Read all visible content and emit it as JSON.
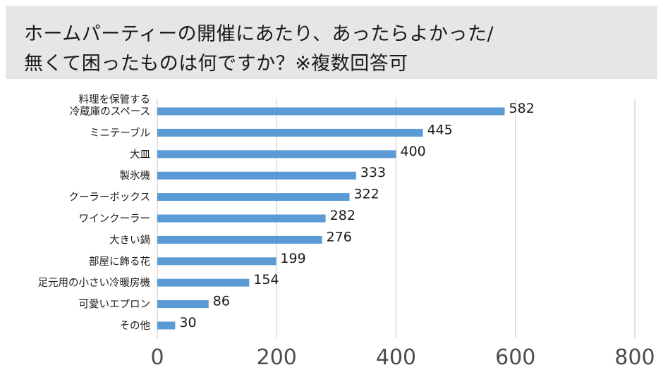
{
  "title": {
    "line1": "ホームパーティーの開催にあたり、あったらよかった/",
    "line2": "無くて困ったものは何ですか？※複数回答可"
  },
  "colors": {
    "bar": "#5b9bd5",
    "grid": "#d9d9d9",
    "title_bg": "#e6e6e6"
  },
  "chart_data": {
    "type": "bar",
    "orientation": "horizontal",
    "categories": [
      [
        "料理を保管する",
        "冷蔵庫のスペース"
      ],
      [
        "ミニテーブル"
      ],
      [
        "大皿"
      ],
      [
        "製氷機"
      ],
      [
        "クーラーボックス"
      ],
      [
        "ワインクーラー"
      ],
      [
        "大きい鍋"
      ],
      [
        "部屋に飾る花"
      ],
      [
        "足元用の小さい冷暖房機"
      ],
      [
        "可愛いエプロン"
      ],
      [
        "その他"
      ]
    ],
    "values": [
      582,
      445,
      400,
      333,
      322,
      282,
      276,
      199,
      154,
      86,
      30
    ],
    "xlim": [
      0,
      800
    ],
    "xticks": [
      0,
      200,
      400,
      600,
      800
    ],
    "grid": true,
    "data_labels": true
  }
}
